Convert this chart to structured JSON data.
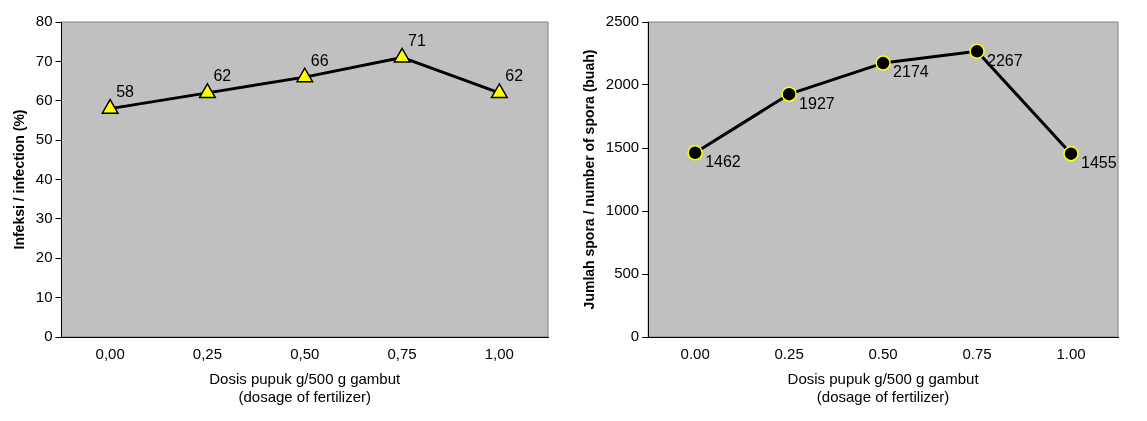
{
  "chart_data": [
    {
      "type": "line",
      "ylabel": "Infeksi / infection (%)",
      "xlabel": "Dosis pupuk g/500 g gambut\n(dosage of fertilizer)",
      "categories": [
        "0,00",
        "0,25",
        "0,50",
        "0,75",
        "1,00"
      ],
      "series": [
        {
          "color": "#000000",
          "values": [
            58,
            62,
            66,
            71,
            62
          ]
        }
      ],
      "ylim": [
        0,
        80
      ],
      "yticks": [
        0,
        10,
        20,
        30,
        40,
        50,
        60,
        70,
        80
      ],
      "grid": false,
      "legend": false,
      "marker": "triangle",
      "data_labels": true
    },
    {
      "type": "line",
      "ylabel": "Jumlah spora / number of spora (buah)",
      "xlabel": "Dosis pupuk g/500 g gambut\n(dosage of fertilizer)",
      "categories": [
        "0.00",
        "0.25",
        "0.50",
        "0.75",
        "1.00"
      ],
      "series": [
        {
          "color": "#000000",
          "values": [
            1462,
            1927,
            2174,
            2267,
            1455
          ]
        }
      ],
      "ylim": [
        0,
        2500
      ],
      "yticks": [
        0,
        500,
        1000,
        1500,
        2000,
        2500
      ],
      "grid": false,
      "legend": false,
      "marker": "circle",
      "data_labels": true
    }
  ]
}
